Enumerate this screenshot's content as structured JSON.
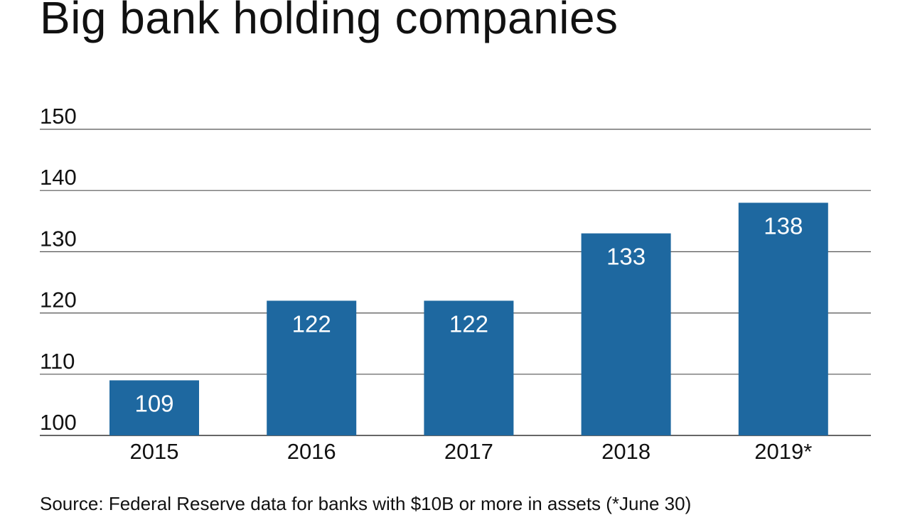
{
  "chart_data": {
    "type": "bar",
    "title": "Big bank holding companies",
    "categories": [
      "2015",
      "2016",
      "2017",
      "2018",
      "2019*"
    ],
    "values": [
      109,
      122,
      122,
      133,
      138
    ],
    "data_labels": [
      "109",
      "122",
      "122",
      "133",
      "138"
    ],
    "xlabel": "",
    "ylabel": "",
    "ylim": [
      100,
      150
    ],
    "yticks": [
      100,
      110,
      120,
      130,
      140,
      150
    ],
    "ytick_labels": [
      "100",
      "110",
      "120",
      "130",
      "140",
      "150"
    ],
    "grid": true,
    "bar_color": "#1e68a0",
    "source": "Source: Federal Reserve data for banks with $10B or more in assets (*June 30)"
  }
}
